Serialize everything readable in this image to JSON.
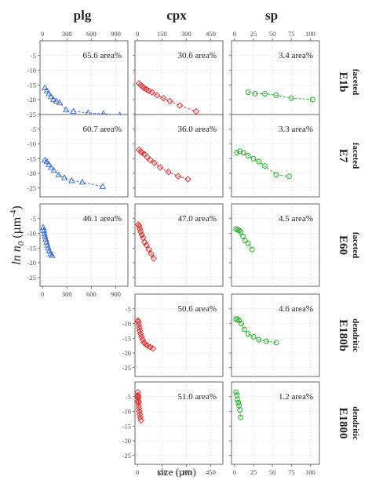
{
  "chart_data": {
    "type": "scatter",
    "columns": [
      "plg",
      "cpx",
      "sp"
    ],
    "row_labels": [
      {
        "name": "E1b",
        "sub": "faceted"
      },
      {
        "name": "E7",
        "sub": "faceted"
      },
      {
        "name": "E60",
        "sub": "faceted"
      },
      {
        "name": "E180b",
        "sub": "dendritic"
      },
      {
        "name": "E1800",
        "sub": "dendritic"
      }
    ],
    "ylabel": "ln n",
    "ylabel_sub": "0",
    "ylabel_unit_open": " (µm",
    "ylabel_unit_exp": "-4",
    "ylabel_unit_close": ")",
    "xlabel": "size (µm)",
    "ylim": [
      -28,
      0
    ],
    "yticks": [
      -5,
      -10,
      -15,
      -20,
      -25
    ],
    "column_xaxes": [
      {
        "xlim": [
          -30,
          1050
        ],
        "xticks": [
          0,
          300,
          600,
          900
        ]
      },
      {
        "xlim": [
          -15,
          525
        ],
        "xticks": [
          0,
          150,
          300,
          450
        ]
      },
      {
        "xlim": [
          -4,
          112
        ],
        "xticks": [
          0,
          25,
          50,
          75,
          100
        ]
      }
    ],
    "colors": {
      "plg": "#3366cc",
      "cpx": "#dd2222",
      "sp": "#22aa22"
    },
    "markers": {
      "plg": "triangle",
      "cpx": "diamond",
      "sp": "circle"
    },
    "panels": [
      {
        "row": 0,
        "col": 0,
        "area_label": "65.6 area%",
        "x": [
          30,
          55,
          80,
          105,
          135,
          170,
          210,
          290,
          380,
          560,
          750,
          950
        ],
        "y": [
          -16,
          -17,
          -18,
          -19,
          -20,
          -20.5,
          -21,
          -23.5,
          -24,
          -24.5,
          -24.8,
          -25.3
        ]
      },
      {
        "row": 0,
        "col": 1,
        "area_label": "30.6 area%",
        "x": [
          10,
          20,
          30,
          40,
          55,
          70,
          90,
          120,
          160,
          200,
          260,
          360
        ],
        "y": [
          -14.5,
          -15,
          -15.5,
          -16,
          -16.5,
          -17,
          -17.5,
          -18.5,
          -19.5,
          -20.5,
          -22,
          -24
        ]
      },
      {
        "row": 0,
        "col": 2,
        "area_label": "3.4 area%",
        "x": [
          18,
          27,
          40,
          55,
          75,
          103
        ],
        "y": [
          -17.5,
          -18,
          -18,
          -18.5,
          -19.5,
          -20
        ]
      },
      {
        "row": 1,
        "col": 0,
        "area_label": "60.7 area%",
        "x": [
          30,
          55,
          80,
          105,
          140,
          200,
          270,
          360,
          490,
          740
        ],
        "y": [
          -15.5,
          -16,
          -17,
          -18,
          -19,
          -20.5,
          -21.5,
          -22.5,
          -23,
          -24.5
        ]
      },
      {
        "row": 1,
        "col": 1,
        "area_label": "36.0 area%",
        "x": [
          10,
          20,
          30,
          45,
          60,
          80,
          105,
          140,
          190,
          250,
          310
        ],
        "y": [
          -12,
          -12.5,
          -13,
          -13.5,
          -14.5,
          -15.5,
          -16.5,
          -18,
          -19.5,
          -21,
          -22
        ]
      },
      {
        "row": 1,
        "col": 2,
        "area_label": "3.3 area%",
        "x": [
          3,
          7,
          12,
          18,
          25,
          32,
          40,
          55,
          72
        ],
        "y": [
          -13,
          -12.5,
          -13,
          -14,
          -15,
          -16,
          -17.5,
          -20.5,
          -21
        ]
      },
      {
        "row": 2,
        "col": 0,
        "area_label": "46.1 area%",
        "x": [
          10,
          18,
          25,
          32,
          40,
          50,
          60,
          72,
          85,
          100,
          120
        ],
        "y": [
          -8,
          -9,
          -10,
          -11,
          -12,
          -13,
          -14,
          -15,
          -16,
          -17,
          -17.5
        ]
      },
      {
        "row": 2,
        "col": 1,
        "area_label": "47.0 area%",
        "x": [
          5,
          10,
          15,
          20,
          27,
          35,
          45,
          55,
          70,
          85,
          100
        ],
        "y": [
          -7,
          -7.5,
          -8.5,
          -9.5,
          -10.5,
          -11.5,
          -13,
          -14,
          -15.5,
          -17,
          -18.5
        ]
      },
      {
        "row": 2,
        "col": 2,
        "area_label": "4.5 area%",
        "x": [
          2,
          4,
          6,
          8,
          11,
          14,
          18,
          23
        ],
        "y": [
          -8.5,
          -8.8,
          -9,
          -9.5,
          -11,
          -12.5,
          -13.5,
          -15.5
        ]
      },
      {
        "row": 3,
        "col": 1,
        "area_label": "50.6 area%",
        "x": [
          3,
          6,
          9,
          12,
          15,
          20,
          25,
          32,
          40,
          50,
          62,
          78,
          95
        ],
        "y": [
          -9,
          -9.5,
          -10.5,
          -11.5,
          -12.5,
          -13.5,
          -14.5,
          -15.5,
          -16.5,
          -17,
          -17.5,
          -18,
          -18.5
        ]
      },
      {
        "row": 3,
        "col": 2,
        "area_label": "4.6 area%",
        "x": [
          2,
          4,
          6,
          9,
          13,
          18,
          25,
          32,
          42,
          55
        ],
        "y": [
          -8.5,
          -8.5,
          -9,
          -10,
          -12,
          -13.5,
          -14.5,
          -15.5,
          -16,
          -16.5
        ]
      },
      {
        "row": 4,
        "col": 1,
        "area_label": "51.0 area%",
        "x": [
          2,
          3,
          4,
          5,
          6,
          7,
          8,
          10,
          12,
          15,
          18,
          22
        ],
        "y": [
          -3.5,
          -4.5,
          -5,
          -5.5,
          -6.5,
          -7,
          -8,
          -9,
          -10,
          -11,
          -12,
          -13
        ]
      },
      {
        "row": 4,
        "col": 2,
        "area_label": "1.2 area%",
        "x": [
          2,
          3,
          4,
          5,
          6,
          7,
          8
        ],
        "y": [
          -3.5,
          -4.5,
          -6,
          -7,
          -8,
          -9.5,
          -12
        ]
      }
    ]
  }
}
